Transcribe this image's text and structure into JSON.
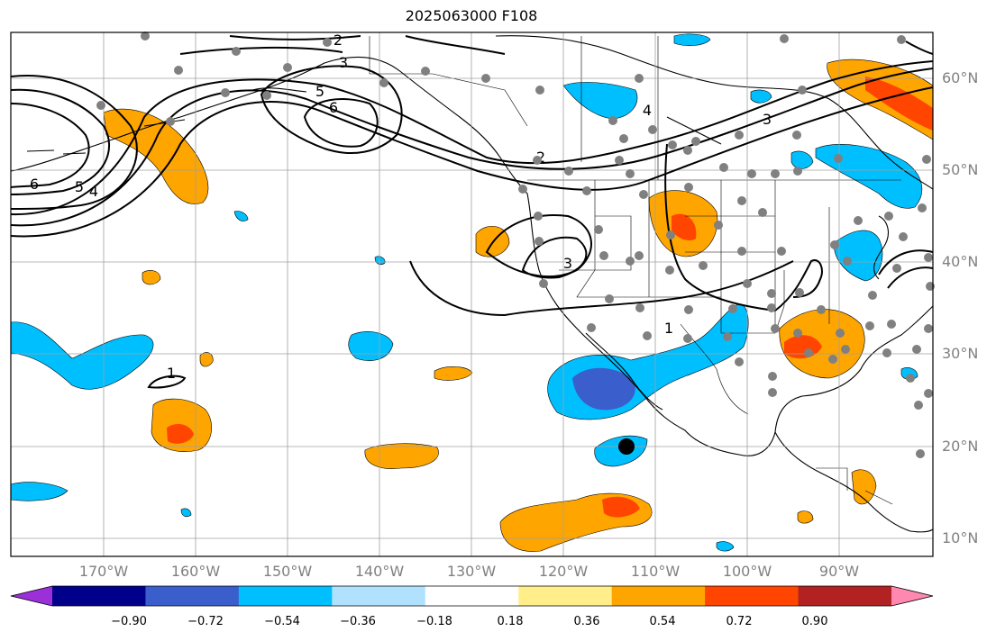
{
  "title": "2025063000 F108",
  "longitude_labels": [
    "170°W",
    "160°W",
    "150°W",
    "140°W",
    "130°W",
    "120°W",
    "110°W",
    "100°W",
    "90°W"
  ],
  "latitude_labels": [
    "60°N",
    "50°N",
    "40°N",
    "30°N",
    "20°N",
    "10°N"
  ],
  "contour_labels": [
    "2",
    "3",
    "5",
    "6",
    "6",
    "5",
    "4",
    "4",
    "3",
    "2",
    "3",
    "1",
    "1"
  ],
  "colorbar": {
    "colors": [
      "#9b30d8",
      "#00008b",
      "#3a5fcd",
      "#00bfff",
      "#b0e2ff",
      "#ffffff",
      "#ffee8a",
      "#ffa500",
      "#ff4500",
      "#b22222",
      "#ff88b0"
    ],
    "tick_labels": [
      "−0.90",
      "−0.72",
      "−0.54",
      "−0.36",
      "−0.18",
      "0.18",
      "0.36",
      "0.54",
      "0.72",
      "0.90"
    ]
  },
  "colors": {
    "orange": "#ffa500",
    "red": "#ff4500",
    "light_blue": "#00bfff",
    "dark_blue": "#3a5fcd",
    "station_dot": "#808080",
    "grid": "#a0a0a0"
  }
}
